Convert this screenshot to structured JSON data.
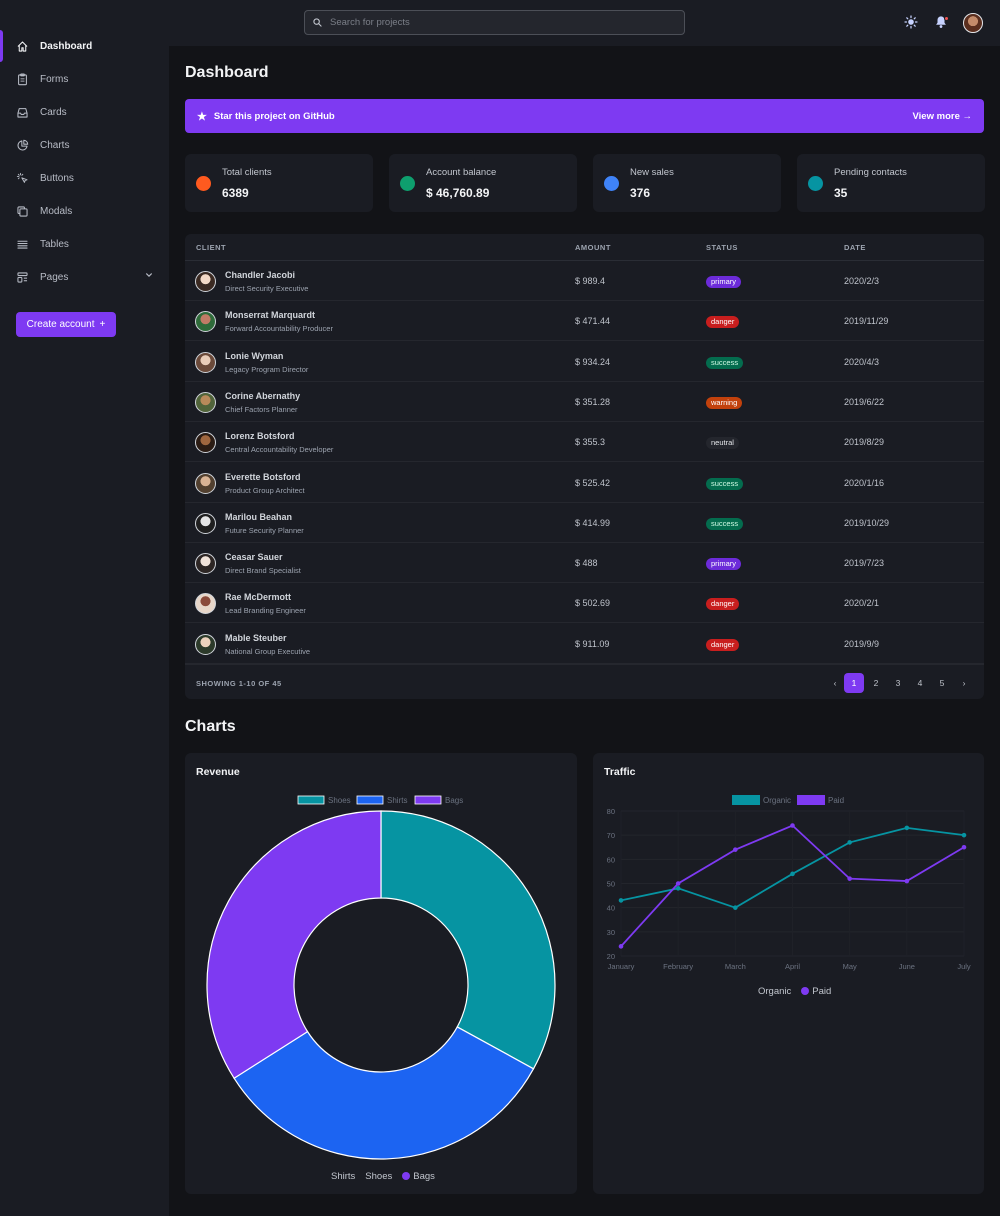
{
  "sidebar": {
    "items": [
      {
        "label": "Dashboard",
        "icon": "home-icon",
        "active": true
      },
      {
        "label": "Forms",
        "icon": "clipboard-icon"
      },
      {
        "label": "Cards",
        "icon": "inbox-icon"
      },
      {
        "label": "Charts",
        "icon": "pie-chart-icon"
      },
      {
        "label": "Buttons",
        "icon": "cursor-click-icon"
      },
      {
        "label": "Modals",
        "icon": "duplicate-icon"
      },
      {
        "label": "Tables",
        "icon": "list-icon"
      },
      {
        "label": "Pages",
        "icon": "template-icon"
      }
    ],
    "create_label": "Create account",
    "create_plus": "+"
  },
  "header": {
    "search_placeholder": "Search for projects"
  },
  "main": {
    "title": "Dashboard",
    "banner": {
      "text": "Star this project on GitHub",
      "more": "View more →"
    },
    "stats": [
      {
        "label": "Total clients",
        "value": "6389",
        "color": "#ff5a1f"
      },
      {
        "label": "Account balance",
        "value": "$ 46,760.89",
        "color": "#0e9f6e"
      },
      {
        "label": "New sales",
        "value": "376",
        "color": "#3f83f8"
      },
      {
        "label": "Pending contacts",
        "value": "35",
        "color": "#0694a2"
      }
    ]
  },
  "table": {
    "headers": {
      "client": "CLIENT",
      "amount": "AMOUNT",
      "status": "STATUS",
      "date": "DATE"
    },
    "rows": [
      {
        "name": "Chandler Jacobi",
        "title": "Direct Security Executive",
        "amount": "$ 989.4",
        "status": "primary",
        "date": "2020/2/3"
      },
      {
        "name": "Monserrat Marquardt",
        "title": "Forward Accountability Producer",
        "amount": "$ 471.44",
        "status": "danger",
        "date": "2019/11/29"
      },
      {
        "name": "Lonie Wyman",
        "title": "Legacy Program Director",
        "amount": "$ 934.24",
        "status": "success",
        "date": "2020/4/3"
      },
      {
        "name": "Corine Abernathy",
        "title": "Chief Factors Planner",
        "amount": "$ 351.28",
        "status": "warning",
        "date": "2019/6/22"
      },
      {
        "name": "Lorenz Botsford",
        "title": "Central Accountability Developer",
        "amount": "$ 355.3",
        "status": "neutral",
        "date": "2019/8/29"
      },
      {
        "name": "Everette Botsford",
        "title": "Product Group Architect",
        "amount": "$ 525.42",
        "status": "success",
        "date": "2020/1/16"
      },
      {
        "name": "Marilou Beahan",
        "title": "Future Security Planner",
        "amount": "$ 414.99",
        "status": "success",
        "date": "2019/10/29"
      },
      {
        "name": "Ceasar Sauer",
        "title": "Direct Brand Specialist",
        "amount": "$ 488",
        "status": "primary",
        "date": "2019/7/23"
      },
      {
        "name": "Rae McDermott",
        "title": "Lead Branding Engineer",
        "amount": "$ 502.69",
        "status": "danger",
        "date": "2020/2/1"
      },
      {
        "name": "Mable Steuber",
        "title": "National Group Executive",
        "amount": "$ 911.09",
        "status": "danger",
        "date": "2019/9/9"
      }
    ],
    "showing": "SHOWING 1-10 OF 45",
    "pages": [
      "1",
      "2",
      "3",
      "4",
      "5"
    ],
    "prev": "‹",
    "next": "›",
    "current_page": "1"
  },
  "charts_section_title": "Charts",
  "chart_data": [
    {
      "type": "pie",
      "title": "Revenue",
      "categories": [
        "Shoes",
        "Shirts",
        "Bags"
      ],
      "values": [
        33,
        33,
        34
      ],
      "colors": [
        "#0694a2",
        "#1c64f2",
        "#7e3af2"
      ],
      "legend_top": [
        "Shoes",
        "Shirts",
        "Bags"
      ],
      "legend_bottom": [
        "Shirts",
        "Shoes",
        "Bags"
      ],
      "donut": true
    },
    {
      "type": "line",
      "title": "Traffic",
      "categories": [
        "January",
        "February",
        "March",
        "April",
        "May",
        "June",
        "July"
      ],
      "series": [
        {
          "name": "Organic",
          "values": [
            43,
            48,
            40,
            54,
            67,
            73,
            70
          ],
          "color": "#0694a2"
        },
        {
          "name": "Paid",
          "values": [
            24,
            50,
            64,
            74,
            52,
            51,
            65
          ],
          "color": "#7e3af2"
        }
      ],
      "ylim": [
        20,
        80
      ],
      "yticks": [
        20,
        30,
        40,
        50,
        60,
        70,
        80
      ],
      "legend_top": [
        "Organic",
        "Paid"
      ],
      "legend_bottom": [
        "Organic",
        "Paid"
      ]
    }
  ]
}
